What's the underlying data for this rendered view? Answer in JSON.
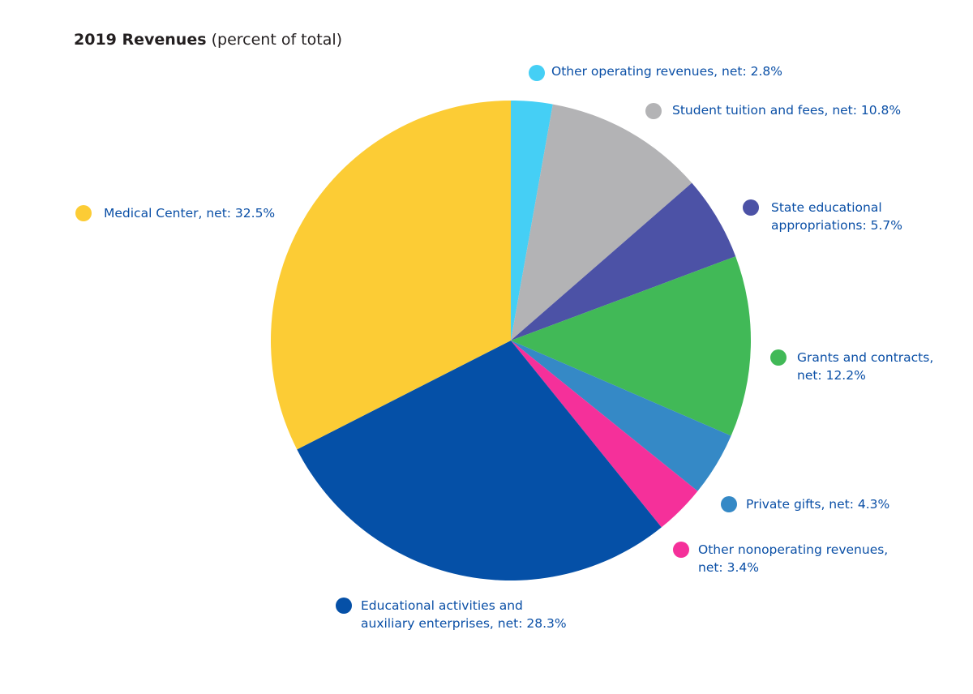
{
  "title": {
    "bold": "2019 Revenues",
    "rest": "(percent of total)"
  },
  "chart_data": {
    "type": "pie",
    "title": "2019 Revenues (percent of total)",
    "start_angle_deg": 0,
    "direction": "clockwise",
    "slices": [
      {
        "name": "other-operating",
        "label_lines": [
          "Other operating revenues, net: 2.8%"
        ],
        "value": 2.8,
        "color": "#45cff5"
      },
      {
        "name": "student-tuition",
        "label_lines": [
          "Student tuition and fees, net: 10.8%"
        ],
        "value": 10.8,
        "color": "#b3b3b5"
      },
      {
        "name": "state-appropriations",
        "label_lines": [
          "State educational",
          "appropriations: 5.7%"
        ],
        "value": 5.7,
        "color": "#4c52a6"
      },
      {
        "name": "grants-contracts",
        "label_lines": [
          "Grants and contracts,",
          "net: 12.2%"
        ],
        "value": 12.2,
        "color": "#41b957"
      },
      {
        "name": "private-gifts",
        "label_lines": [
          "Private gifts, net: 4.3%"
        ],
        "value": 4.3,
        "color": "#3589c6"
      },
      {
        "name": "other-nonoperating",
        "label_lines": [
          "Other nonoperating revenues,",
          "net: 3.4%"
        ],
        "value": 3.4,
        "color": "#f5309a"
      },
      {
        "name": "educational-activities",
        "label_lines": [
          "Educational activities and",
          "auxiliary enterprises, net: 28.3%"
        ],
        "value": 28.3,
        "color": "#0550a7"
      },
      {
        "name": "medical-center",
        "label_lines": [
          "Medical Center, net: 32.5%"
        ],
        "value": 32.5,
        "color": "#fccc35"
      }
    ]
  }
}
